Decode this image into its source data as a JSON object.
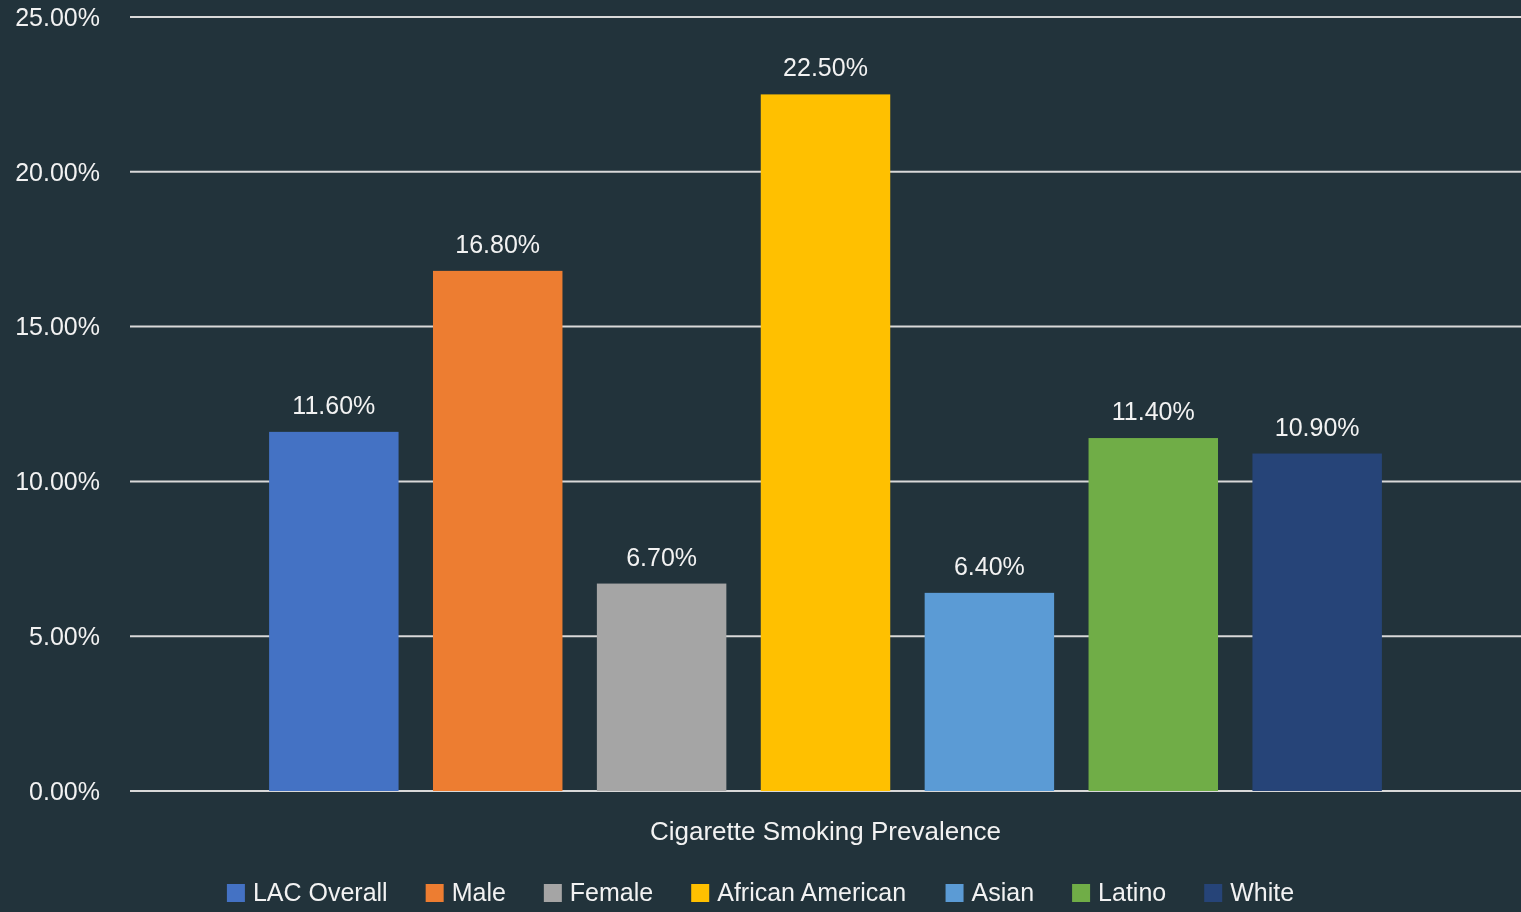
{
  "chart_data": {
    "type": "bar",
    "categories": [
      "Cigarette Smoking Prevalence"
    ],
    "series": [
      {
        "name": "LAC Overall",
        "color": "#4472c4",
        "values": [
          11.6
        ],
        "value_labels": [
          "11.60%"
        ]
      },
      {
        "name": "Male",
        "color": "#ed7d31",
        "values": [
          16.8
        ],
        "value_labels": [
          "16.80%"
        ]
      },
      {
        "name": "Female",
        "color": "#a5a5a5",
        "values": [
          6.7
        ],
        "value_labels": [
          "6.70%"
        ]
      },
      {
        "name": "African American",
        "color": "#ffc000",
        "values": [
          22.5
        ],
        "value_labels": [
          "22.50%"
        ]
      },
      {
        "name": "Asian",
        "color": "#5b9bd5",
        "values": [
          6.4
        ],
        "value_labels": [
          "6.40%"
        ]
      },
      {
        "name": "Latino",
        "color": "#70ad47",
        "values": [
          11.4
        ],
        "value_labels": [
          "11.40%"
        ]
      },
      {
        "name": "White",
        "color": "#264478",
        "values": [
          10.9
        ],
        "value_labels": [
          "10.90%"
        ]
      }
    ],
    "ylim": [
      0,
      25
    ],
    "yticks": [
      {
        "value": 0,
        "label": "0.00%"
      },
      {
        "value": 5,
        "label": "5.00%"
      },
      {
        "value": 10,
        "label": "10.00%"
      },
      {
        "value": 15,
        "label": "15.00%"
      },
      {
        "value": 20,
        "label": "20.00%"
      },
      {
        "value": 25,
        "label": "25.00%"
      }
    ],
    "grid": "y",
    "legend": "bottom"
  }
}
